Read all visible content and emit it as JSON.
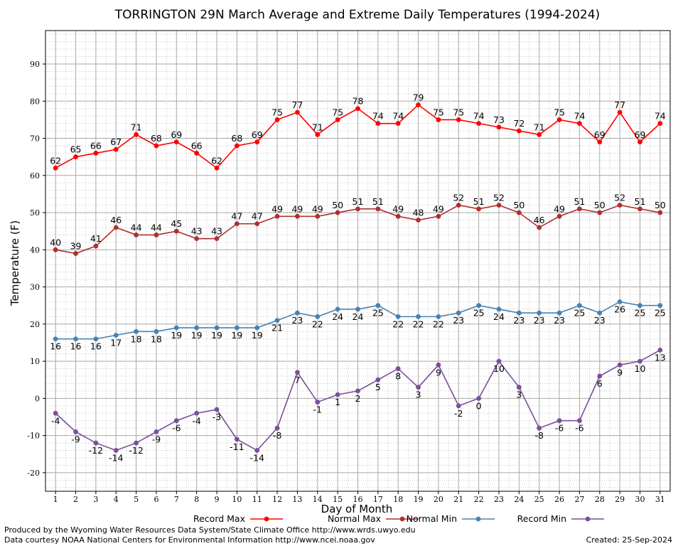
{
  "chart_data": {
    "type": "line",
    "title": "TORRINGTON 29N March Average and Extreme Daily Temperatures (1994-2024)",
    "xlabel": "Day of Month",
    "ylabel": "Temperature (F)",
    "x": [
      1,
      2,
      3,
      4,
      5,
      6,
      7,
      8,
      9,
      10,
      11,
      12,
      13,
      14,
      15,
      16,
      17,
      18,
      19,
      20,
      21,
      22,
      23,
      24,
      25,
      26,
      27,
      28,
      29,
      30,
      31
    ],
    "xlim": [
      0.5,
      31.5
    ],
    "ylim": [
      -25,
      99
    ],
    "yticks": [
      -20,
      -10,
      0,
      10,
      20,
      30,
      40,
      50,
      60,
      70,
      80,
      90
    ],
    "grid": true,
    "legend_position": "bottom",
    "series": [
      {
        "name": "Record Max",
        "color": "#ff0000",
        "label_position": "above",
        "values": [
          62,
          65,
          66,
          67,
          71,
          68,
          69,
          66,
          62,
          68,
          69,
          75,
          77,
          71,
          75,
          78,
          74,
          74,
          79,
          75,
          75,
          74,
          73,
          72,
          71,
          75,
          74,
          69,
          77,
          69,
          74
        ]
      },
      {
        "name": "Normal Max",
        "color": "#b03030",
        "label_position": "above",
        "values": [
          40,
          39,
          41,
          46,
          44,
          44,
          45,
          43,
          43,
          47,
          47,
          49,
          49,
          49,
          50,
          51,
          51,
          49,
          48,
          49,
          52,
          51,
          52,
          50,
          46,
          49,
          51,
          50,
          52,
          51,
          50
        ]
      },
      {
        "name": "Normal Min",
        "color": "#4682b4",
        "label_position": "below",
        "values": [
          16,
          16,
          16,
          17,
          18,
          18,
          19,
          19,
          19,
          19,
          19,
          21,
          23,
          22,
          24,
          24,
          25,
          22,
          22,
          22,
          23,
          25,
          24,
          23,
          23,
          23,
          25,
          23,
          26,
          25,
          25
        ]
      },
      {
        "name": "Record Min",
        "color": "#7a4f9a",
        "label_position": "below",
        "values": [
          -4,
          -9,
          -12,
          -14,
          -12,
          -9,
          -6,
          -4,
          -3,
          -11,
          -14,
          -8,
          7,
          -1,
          1,
          2,
          5,
          8,
          3,
          9,
          -2,
          0,
          10,
          3,
          -8,
          -6,
          -6,
          6,
          9,
          10,
          13
        ]
      }
    ]
  },
  "footer": {
    "line1": "Produced by the Wyoming Water Resources Data System/State Climate Office http://www.wrds.uwyo.edu",
    "line2": "Data courtesy NOAA National Centers for Environmental Information http://www.ncei.noaa.gov",
    "created": "Created: 25-Sep-2024"
  }
}
